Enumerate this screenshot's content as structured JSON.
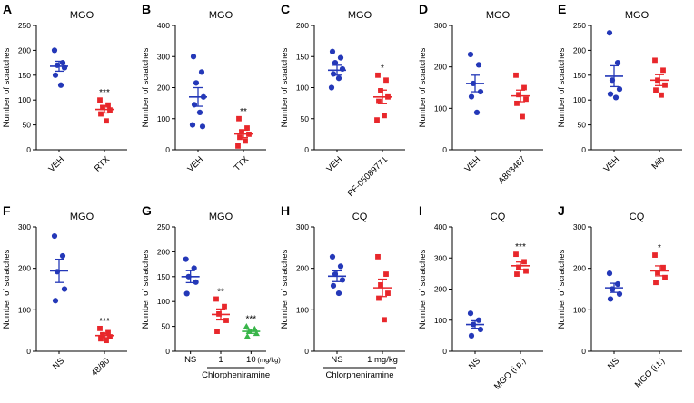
{
  "chart_data": [
    {
      "panel": "A",
      "type": "scatter",
      "title": "MGO",
      "ylabel": "Number of scratches",
      "ylim": [
        0,
        250
      ],
      "yticks": [
        0,
        50,
        100,
        150,
        200,
        250
      ],
      "rotated_xticklabels": true,
      "groups": [
        {
          "label": "VEH",
          "marker": "circle",
          "color": "#2438b8",
          "values": [
            200,
            175,
            170,
            165,
            150,
            130
          ],
          "mean": 168,
          "sem": 10,
          "sig": ""
        },
        {
          "label": "RTX",
          "marker": "square",
          "color": "#e8272b",
          "values": [
            100,
            90,
            85,
            80,
            72,
            58
          ],
          "mean": 81,
          "sem": 7,
          "sig": "***"
        }
      ]
    },
    {
      "panel": "B",
      "type": "scatter",
      "title": "MGO",
      "ylabel": "Number of scratches",
      "ylim": [
        0,
        400
      ],
      "yticks": [
        0,
        100,
        200,
        300,
        400
      ],
      "rotated_xticklabels": true,
      "groups": [
        {
          "label": "VEH",
          "marker": "circle",
          "color": "#2438b8",
          "values": [
            300,
            250,
            215,
            170,
            145,
            120,
            80,
            75
          ],
          "mean": 170,
          "sem": 30,
          "sig": ""
        },
        {
          "label": "TTX",
          "marker": "square",
          "color": "#e8272b",
          "values": [
            100,
            70,
            58,
            50,
            40,
            28,
            12
          ],
          "mean": 51,
          "sem": 12,
          "sig": "**"
        }
      ]
    },
    {
      "panel": "C",
      "type": "scatter",
      "title": "MGO",
      "ylabel": "Number of scratches",
      "ylim": [
        0,
        200
      ],
      "yticks": [
        0,
        50,
        100,
        150,
        200
      ],
      "rotated_xticklabels": true,
      "groups": [
        {
          "label": "VEH",
          "marker": "circle",
          "color": "#2438b8",
          "values": [
            158,
            148,
            140,
            130,
            122,
            115,
            100
          ],
          "mean": 128,
          "sem": 8,
          "sig": ""
        },
        {
          "label": "PF-05089771",
          "marker": "square",
          "color": "#e8272b",
          "values": [
            120,
            112,
            95,
            85,
            78,
            55,
            48
          ],
          "mean": 85,
          "sem": 11,
          "sig": "*"
        }
      ]
    },
    {
      "panel": "D",
      "type": "scatter",
      "title": "MGO",
      "ylabel": "Number of scratches",
      "ylim": [
        0,
        300
      ],
      "yticks": [
        0,
        100,
        200,
        300
      ],
      "rotated_xticklabels": true,
      "groups": [
        {
          "label": "VEH",
          "marker": "circle",
          "color": "#2438b8",
          "values": [
            230,
            205,
            160,
            140,
            128,
            90
          ],
          "mean": 160,
          "sem": 20,
          "sig": ""
        },
        {
          "label": "A803467",
          "marker": "square",
          "color": "#e8272b",
          "values": [
            180,
            150,
            133,
            122,
            112,
            80
          ],
          "mean": 130,
          "sem": 14,
          "sig": ""
        }
      ]
    },
    {
      "panel": "E",
      "type": "scatter",
      "title": "MGO",
      "ylabel": "Number of scratches",
      "ylim": [
        0,
        250
      ],
      "yticks": [
        0,
        50,
        100,
        150,
        200,
        250
      ],
      "rotated_xticklabels": true,
      "groups": [
        {
          "label": "VEH",
          "marker": "circle",
          "color": "#2438b8",
          "values": [
            235,
            175,
            140,
            122,
            112,
            105
          ],
          "mean": 148,
          "sem": 21,
          "sig": ""
        },
        {
          "label": "Mib",
          "marker": "square",
          "color": "#e8272b",
          "values": [
            180,
            160,
            140,
            130,
            120,
            110
          ],
          "mean": 140,
          "sem": 11,
          "sig": ""
        }
      ]
    },
    {
      "panel": "F",
      "type": "scatter",
      "title": "MGO",
      "ylabel": "Number of scratches",
      "ylim": [
        0,
        300
      ],
      "yticks": [
        0,
        100,
        200,
        300
      ],
      "rotated_xticklabels": true,
      "groups": [
        {
          "label": "NS",
          "marker": "circle",
          "color": "#2438b8",
          "values": [
            278,
            230,
            192,
            150,
            122
          ],
          "mean": 194,
          "sem": 28,
          "sig": ""
        },
        {
          "label": "48/80",
          "marker": "square",
          "color": "#e8272b",
          "values": [
            55,
            45,
            40,
            35,
            30,
            26
          ],
          "mean": 38,
          "sem": 5,
          "sig": "***"
        }
      ]
    },
    {
      "panel": "G",
      "type": "scatter",
      "title": "MGO",
      "ylabel": "Number of scratches",
      "ylim": [
        0,
        250
      ],
      "yticks": [
        0,
        50,
        100,
        150,
        200,
        250
      ],
      "rotated_xticklabels": false,
      "unit": "(mg/kg)",
      "axis_annotation": {
        "label": "Chlorpheniramine",
        "span": [
          1,
          2
        ]
      },
      "groups": [
        {
          "label": "NS",
          "marker": "circle",
          "color": "#2438b8",
          "values": [
            185,
            167,
            150,
            139,
            116
          ],
          "mean": 150,
          "sem": 12,
          "sig": ""
        },
        {
          "label": "1",
          "marker": "square",
          "color": "#e8272b",
          "values": [
            105,
            90,
            75,
            62,
            40
          ],
          "mean": 74,
          "sem": 11,
          "sig": "**"
        },
        {
          "label": "10",
          "marker": "triangle",
          "color": "#39b54a",
          "values": [
            50,
            45,
            40,
            36,
            30
          ],
          "mean": 40,
          "sem": 4,
          "sig": "***"
        }
      ]
    },
    {
      "panel": "H",
      "type": "scatter",
      "title": "CQ",
      "ylabel": "Number of scratches",
      "ylim": [
        0,
        300
      ],
      "yticks": [
        0,
        100,
        200,
        300
      ],
      "rotated_xticklabels": false,
      "axis_annotation": {
        "label": "Chlorpheniramine",
        "span": [
          0,
          1
        ]
      },
      "groups": [
        {
          "label": "NS",
          "marker": "circle",
          "color": "#2438b8",
          "values": [
            228,
            205,
            186,
            172,
            158,
            140
          ],
          "mean": 181,
          "sem": 13,
          "sig": ""
        },
        {
          "label": "1 mg/kg",
          "marker": "square",
          "color": "#e8272b",
          "values": [
            228,
            186,
            160,
            140,
            128,
            76
          ],
          "mean": 153,
          "sem": 21,
          "sig": ""
        }
      ]
    },
    {
      "panel": "I",
      "type": "scatter",
      "title": "CQ",
      "ylabel": "Number of scratches",
      "ylim": [
        0,
        400
      ],
      "yticks": [
        0,
        100,
        200,
        300,
        400
      ],
      "rotated_xticklabels": true,
      "groups": [
        {
          "label": "NS",
          "marker": "circle",
          "color": "#2438b8",
          "values": [
            122,
            100,
            86,
            70,
            50
          ],
          "mean": 86,
          "sem": 12,
          "sig": ""
        },
        {
          "label": "MGO (i.p.)",
          "marker": "square",
          "color": "#e8272b",
          "values": [
            312,
            288,
            270,
            258,
            248
          ],
          "mean": 275,
          "sem": 12,
          "sig": "***"
        }
      ]
    },
    {
      "panel": "J",
      "type": "scatter",
      "title": "CQ",
      "ylabel": "Number of scratches",
      "ylim": [
        0,
        300
      ],
      "yticks": [
        0,
        100,
        200,
        300
      ],
      "rotated_xticklabels": true,
      "groups": [
        {
          "label": "NS",
          "marker": "circle",
          "color": "#2438b8",
          "values": [
            188,
            162,
            150,
            138,
            126
          ],
          "mean": 153,
          "sem": 11,
          "sig": ""
        },
        {
          "label": "MGO (i.t.)",
          "marker": "square",
          "color": "#e8272b",
          "values": [
            232,
            202,
            190,
            178,
            166
          ],
          "mean": 194,
          "sem": 12,
          "sig": "*"
        }
      ]
    }
  ]
}
